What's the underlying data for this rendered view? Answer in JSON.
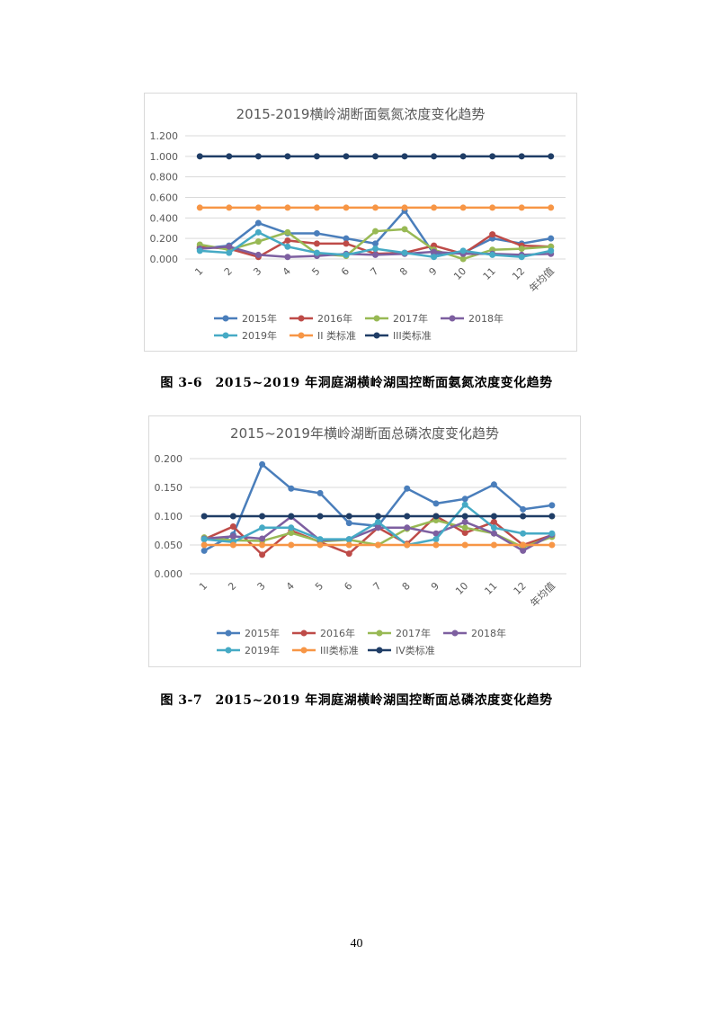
{
  "chart_data": [
    {
      "type": "line",
      "title": "2015-2019横岭湖断面氨氮浓度变化趋势",
      "categories": [
        "1",
        "2",
        "3",
        "4",
        "5",
        "6",
        "7",
        "8",
        "9",
        "10",
        "11",
        "12",
        "年均值"
      ],
      "ylim": [
        0,
        1.2
      ],
      "yticks": [
        "0.000",
        "0.200",
        "0.400",
        "0.600",
        "0.800",
        "1.000",
        "1.200"
      ],
      "ytick_values": [
        0,
        0.2,
        0.4,
        0.6,
        0.8,
        1.0,
        1.2
      ],
      "grid": true,
      "legend": "bottom",
      "series": [
        {
          "name": "2015年",
          "color": "#4a7ebb",
          "values": [
            0.1,
            0.13,
            0.35,
            0.25,
            0.25,
            0.2,
            0.15,
            0.47,
            0.05,
            0.06,
            0.2,
            0.15,
            0.2
          ]
        },
        {
          "name": "2016年",
          "color": "#be4b48",
          "values": [
            0.12,
            0.1,
            0.02,
            0.18,
            0.15,
            0.15,
            0.05,
            0.06,
            0.13,
            0.05,
            0.24,
            0.13,
            0.12
          ]
        },
        {
          "name": "2017年",
          "color": "#98b954",
          "values": [
            0.14,
            0.09,
            0.17,
            0.26,
            0.05,
            0.03,
            0.27,
            0.29,
            0.09,
            0.0,
            0.09,
            0.1,
            0.12
          ]
        },
        {
          "name": "2018年",
          "color": "#7d5fa0",
          "values": [
            0.1,
            0.12,
            0.04,
            0.02,
            0.03,
            0.05,
            0.04,
            0.05,
            0.07,
            0.05,
            0.05,
            0.04,
            0.05
          ]
        },
        {
          "name": "2019年",
          "color": "#46aac5",
          "values": [
            0.08,
            0.06,
            0.26,
            0.12,
            0.06,
            0.04,
            0.1,
            0.06,
            0.02,
            0.08,
            0.04,
            0.02,
            0.08
          ]
        },
        {
          "name": "II 类标准",
          "color": "#f79646",
          "values": [
            0.5,
            0.5,
            0.5,
            0.5,
            0.5,
            0.5,
            0.5,
            0.5,
            0.5,
            0.5,
            0.5,
            0.5,
            0.5
          ]
        },
        {
          "name": "III类标准",
          "color": "#1f3d66",
          "values": [
            1,
            1,
            1,
            1,
            1,
            1,
            1,
            1,
            1,
            1,
            1,
            1,
            1
          ]
        }
      ]
    },
    {
      "type": "line",
      "title": "2015~2019年横岭湖断面总磷浓度变化趋势",
      "categories": [
        "1",
        "2",
        "3",
        "4",
        "5",
        "6",
        "7",
        "8",
        "9",
        "10",
        "11",
        "12",
        "年均值"
      ],
      "ylim": [
        0,
        0.2
      ],
      "yticks": [
        "0.000",
        "0.050",
        "0.100",
        "0.150",
        "0.200"
      ],
      "ytick_values": [
        0,
        0.05,
        0.1,
        0.15,
        0.2
      ],
      "grid": true,
      "legend": "bottom",
      "series": [
        {
          "name": "2015年",
          "color": "#4a7ebb",
          "values": [
            0.04,
            0.068,
            0.19,
            0.148,
            0.14,
            0.088,
            0.083,
            0.148,
            0.122,
            0.13,
            0.155,
            0.112,
            0.119
          ]
        },
        {
          "name": "2016年",
          "color": "#be4b48",
          "values": [
            0.06,
            0.082,
            0.033,
            0.075,
            0.055,
            0.035,
            0.08,
            0.052,
            0.1,
            0.071,
            0.09,
            0.05,
            0.067
          ]
        },
        {
          "name": "2017年",
          "color": "#98b954",
          "values": [
            0.063,
            0.058,
            0.057,
            0.071,
            0.056,
            0.059,
            0.05,
            0.078,
            0.093,
            0.08,
            0.07,
            0.046,
            0.064
          ]
        },
        {
          "name": "2018年",
          "color": "#7d5fa0",
          "values": [
            0.061,
            0.065,
            0.061,
            0.099,
            0.058,
            0.06,
            0.08,
            0.08,
            0.07,
            0.09,
            0.07,
            0.04,
            0.068
          ]
        },
        {
          "name": "2019年",
          "color": "#46aac5",
          "values": [
            0.06,
            0.055,
            0.08,
            0.08,
            0.06,
            0.06,
            0.09,
            0.05,
            0.06,
            0.12,
            0.08,
            0.07,
            0.07
          ]
        },
        {
          "name": "III类标准",
          "color": "#f79646",
          "values": [
            0.05,
            0.05,
            0.05,
            0.05,
            0.05,
            0.05,
            0.05,
            0.05,
            0.05,
            0.05,
            0.05,
            0.05,
            0.05
          ]
        },
        {
          "name": "IV类标准",
          "color": "#1f3d66",
          "values": [
            0.1,
            0.1,
            0.1,
            0.1,
            0.1,
            0.1,
            0.1,
            0.1,
            0.1,
            0.1,
            0.1,
            0.1,
            0.1
          ]
        }
      ]
    }
  ],
  "captions": [
    "图 3-6　2015~2019 年洞庭湖横岭湖国控断面氨氮浓度变化趋势",
    "图 3-7　2015~2019 年洞庭湖横岭湖国控断面总磷浓度变化趋势"
  ],
  "page_number": "40"
}
